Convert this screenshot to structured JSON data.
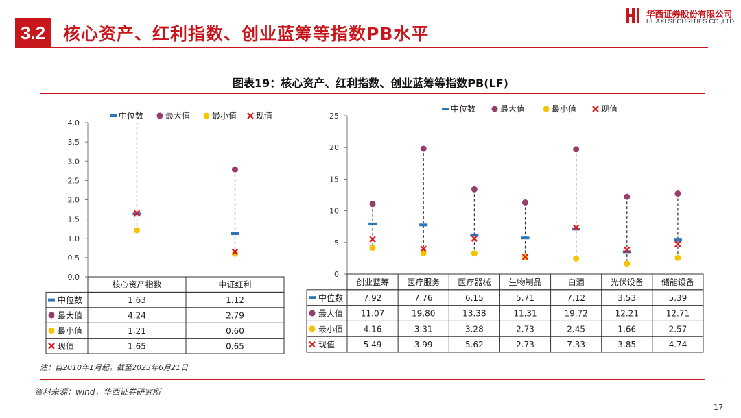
{
  "header": {
    "section_number": "3.2",
    "section_title": "核心资产、红利指数、创业蓝筹等指数PB水平",
    "logo_cn": "华西证券股份有限公司",
    "logo_en": "HUAXI SECURITIES CO.,LTD."
  },
  "figure_title": "图表19：核心资产、红利指数、创业蓝筹等指数PB(LF)",
  "note": "注：自2010年1月起，截至2023年6月21日",
  "source": "资料来源：wind，华西证券研究所",
  "page_number": "17",
  "colors": {
    "brand": "#c8161d",
    "median": "#2e75b6",
    "max": "#953d6b",
    "min": "#f5c400",
    "current": "#e0161e"
  },
  "chart_data": [
    {
      "type": "range-dot",
      "categories": [
        "核心资产指数",
        "中证红利"
      ],
      "legend": [
        "中位数",
        "最大值",
        "最小值",
        "现值"
      ],
      "legend_position": "top",
      "ylim": [
        0,
        4.0
      ],
      "yticks": [
        "0.0",
        "0.5",
        "1.0",
        "1.5",
        "2.0",
        "2.5",
        "3.0",
        "3.5",
        "4.0"
      ],
      "series": [
        {
          "name": "中位数",
          "values": [
            1.63,
            1.12
          ],
          "labels": [
            "1.63",
            "1.12"
          ]
        },
        {
          "name": "最大值",
          "values": [
            4.24,
            2.79
          ],
          "labels": [
            "4.24",
            "2.79"
          ]
        },
        {
          "name": "最小值",
          "values": [
            1.21,
            0.6
          ],
          "labels": [
            "1.21",
            "0.60"
          ]
        },
        {
          "name": "现值",
          "values": [
            1.65,
            0.65
          ],
          "labels": [
            "1.65",
            "0.65"
          ]
        }
      ]
    },
    {
      "type": "range-dot",
      "categories": [
        "创业蓝筹",
        "医疗服务",
        "医疗器械",
        "生物制品",
        "白酒",
        "光伏设备",
        "储能设备"
      ],
      "legend": [
        "中位数",
        "最大值",
        "最小值",
        "现值"
      ],
      "legend_position": "top",
      "ylim": [
        0,
        25
      ],
      "yticks": [
        "0",
        "5",
        "10",
        "15",
        "20",
        "25"
      ],
      "series": [
        {
          "name": "中位数",
          "values": [
            7.92,
            7.76,
            6.15,
            5.71,
            7.12,
            3.53,
            5.39
          ],
          "labels": [
            "7.92",
            "7.76",
            "6.15",
            "5.71",
            "7.12",
            "3.53",
            "5.39"
          ]
        },
        {
          "name": "最大值",
          "values": [
            11.07,
            19.8,
            13.38,
            11.31,
            19.72,
            12.21,
            12.71
          ],
          "labels": [
            "11.07",
            "19.80",
            "13.38",
            "11.31",
            "19.72",
            "12.21",
            "12.71"
          ]
        },
        {
          "name": "最小值",
          "values": [
            4.16,
            3.31,
            3.28,
            2.73,
            2.45,
            1.66,
            2.57
          ],
          "labels": [
            "4.16",
            "3.31",
            "3.28",
            "2.73",
            "2.45",
            "1.66",
            "2.57"
          ]
        },
        {
          "name": "现值",
          "values": [
            5.49,
            3.99,
            5.62,
            2.73,
            7.33,
            3.85,
            4.74
          ],
          "labels": [
            "5.49",
            "3.99",
            "5.62",
            "2.73",
            "7.33",
            "3.85",
            "4.74"
          ]
        }
      ]
    }
  ]
}
